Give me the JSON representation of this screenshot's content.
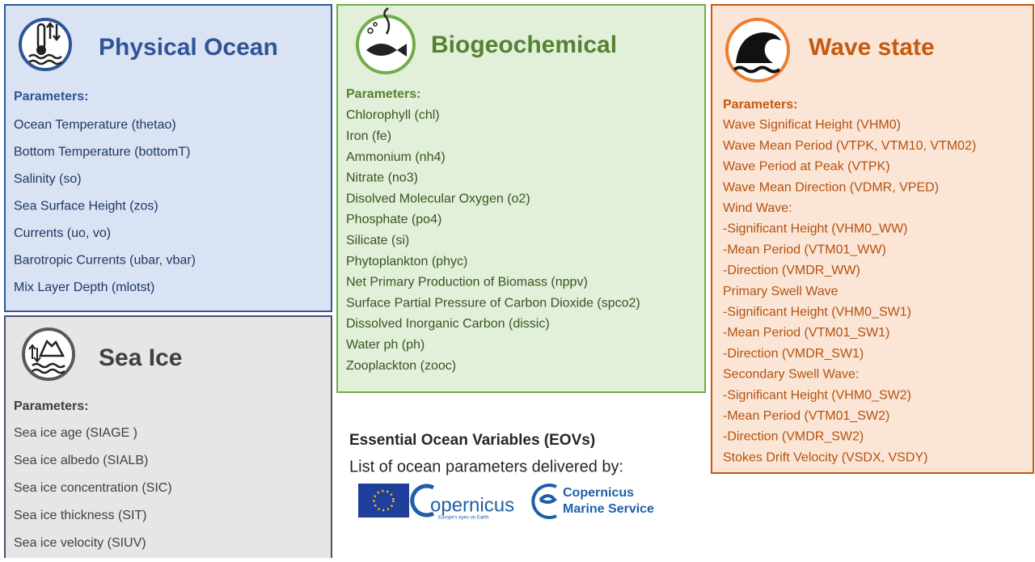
{
  "panels": [
    {
      "title": "Physical Ocean",
      "parameters_label": "Parameters:",
      "items": [
        "Ocean Temperature (thetao)",
        "Bottom Temperature (bottomT)",
        "Salinity (so)",
        "Sea Surface Height (zos)",
        "Currents (uo, vo)",
        "Barotropic Currents (ubar, vbar)",
        "Mix Layer Depth (mlotst)"
      ]
    },
    {
      "title": "Sea Ice",
      "parameters_label": "Parameters:",
      "items": [
        "Sea ice age (SIAGE )",
        "Sea ice albedo (SIALB)",
        "Sea ice concentration (SIC)",
        "Sea ice thickness (SIT)",
        "Sea ice velocity (SIUV)"
      ]
    },
    {
      "title": "Biogeochemical",
      "parameters_label": "Parameters:",
      "items": [
        "Chlorophyll (chl)",
        "Iron (fe)",
        "Ammonium (nh4)",
        "Nitrate (no3)",
        "Disolved Molecular Oxygen (o2)",
        "Phosphate (po4)",
        "Silicate (si)",
        "Phytoplankton (phyc)",
        "Net Primary Production of Biomass (nppv)",
        "Surface Partial Pressure of Carbon Dioxide (spco2)",
        "Dissolved Inorganic Carbon (dissic)",
        "Water ph (ph)",
        "Zooplackton (zooc)"
      ]
    },
    {
      "title": "Wave state",
      "parameters_label": "Parameters:",
      "items": [
        "Wave Significat Height (VHM0)",
        "Wave Mean Period (VTPK, VTM10, VTM02)",
        "Wave Period at Peak (VTPK)",
        "Wave Mean Direction (VDMR, VPED)",
        "Wind Wave:",
        " -Significant Height (VHM0_WW)",
        " -Mean Period (VTM01_WW)",
        " -Direction (VMDR_WW)",
        "Primary Swell Wave",
        " -Significant Height (VHM0_SW1)",
        " -Mean Period (VTM01_SW1)",
        " -Direction (VMDR_SW1)",
        "Secondary Swell Wave:",
        " -Significant Height (VHM0_SW2)",
        " -Mean Period (VTM01_SW2)",
        " -Direction (VMDR_SW2)",
        "Stokes Drift Velocity (VSDX, VSDY)"
      ]
    }
  ],
  "footer": {
    "title": "Essential Ocean Variables (EOVs)",
    "subtitle": "List of ocean parameters delivered by:"
  },
  "logos": {
    "copernicus": "opernicus",
    "tagline": "Europe's eyes on Earth",
    "marine_line1": "Copernicus",
    "marine_line2": "Marine Service"
  }
}
